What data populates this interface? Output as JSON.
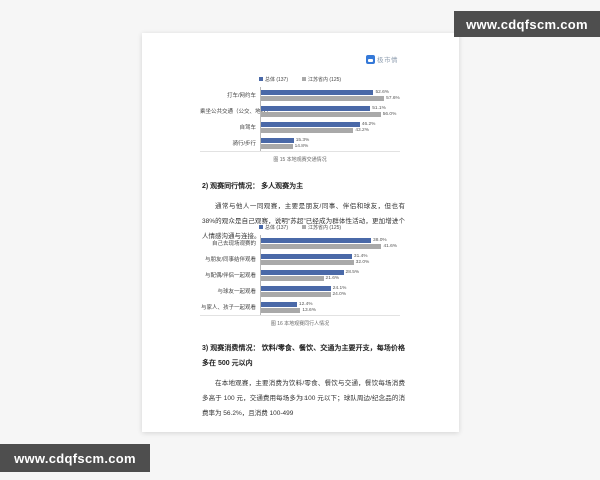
{
  "watermark": {
    "text": "www.cdqfscm.com"
  },
  "logo": {
    "text": "极市情",
    "icon": "blue-square-logo",
    "accent_color": "#3579d8"
  },
  "colors": {
    "bar_blue": "#4a69a8",
    "bar_gray": "#a9a9a9",
    "watermark_bg": "#4e4e4e"
  },
  "sections": {
    "s2": {
      "heading": "2) 观赛同行情况： 多人观赛为主",
      "para": "通常与他人一同观赛，主要是朋友/同事、伴侣和球友，但也有 38%的观众是自己观赛，说明“苏超”已经成为群体性活动，更加增进个人情感沟通与连接。"
    },
    "s3": {
      "heading": "3) 观赛消费情况： 饮料/零食、餐饮、交通为主要开支，每场价格多在 500 元以内",
      "para": "在本地观赛，主要消费为饮料/零食、餐饮与交通，餐饮每场消费多高于 100 元，交通费用每场多为 100 元以下；球队周边/纪念品的消费率为 56.2%，且消费 100-499"
    }
  },
  "page_number": "17",
  "chart_data": [
    {
      "type": "bar",
      "orientation": "horizontal",
      "title": "",
      "caption": "图 15 本地观赛交通情况",
      "legend_position": "top",
      "grid": false,
      "xlim": [
        0,
        65
      ],
      "categories": [
        "打车/网约车",
        "乘坐公共交通（公交、地铁）",
        "自驾车",
        "骑行/步行"
      ],
      "series": [
        {
          "name": "总体 (137)",
          "color": "#4a69a8",
          "values": [
            52.6,
            51.1,
            46.2,
            15.3
          ]
        },
        {
          "name": "江苏省内 (125)",
          "color": "#a9a9a9",
          "values": [
            57.6,
            56.0,
            43.2,
            14.8
          ]
        }
      ]
    },
    {
      "type": "bar",
      "orientation": "horizontal",
      "title": "",
      "caption": "图 16 本地观赛同行人情况",
      "legend_position": "top",
      "grid": false,
      "xlim": [
        0,
        48
      ],
      "categories": [
        "自己去现场观赛的",
        "与朋友/同事结伴观看",
        "与配偶/伴侣一起观看",
        "与球友一起观看",
        "与家人、孩子一起观看"
      ],
      "series": [
        {
          "name": "总体 (137)",
          "color": "#4a69a8",
          "values": [
            38.0,
            31.4,
            28.5,
            24.1,
            12.4
          ]
        },
        {
          "name": "江苏省内 (125)",
          "color": "#a9a9a9",
          "values": [
            41.6,
            32.0,
            21.6,
            24.0,
            13.6
          ]
        }
      ]
    }
  ]
}
